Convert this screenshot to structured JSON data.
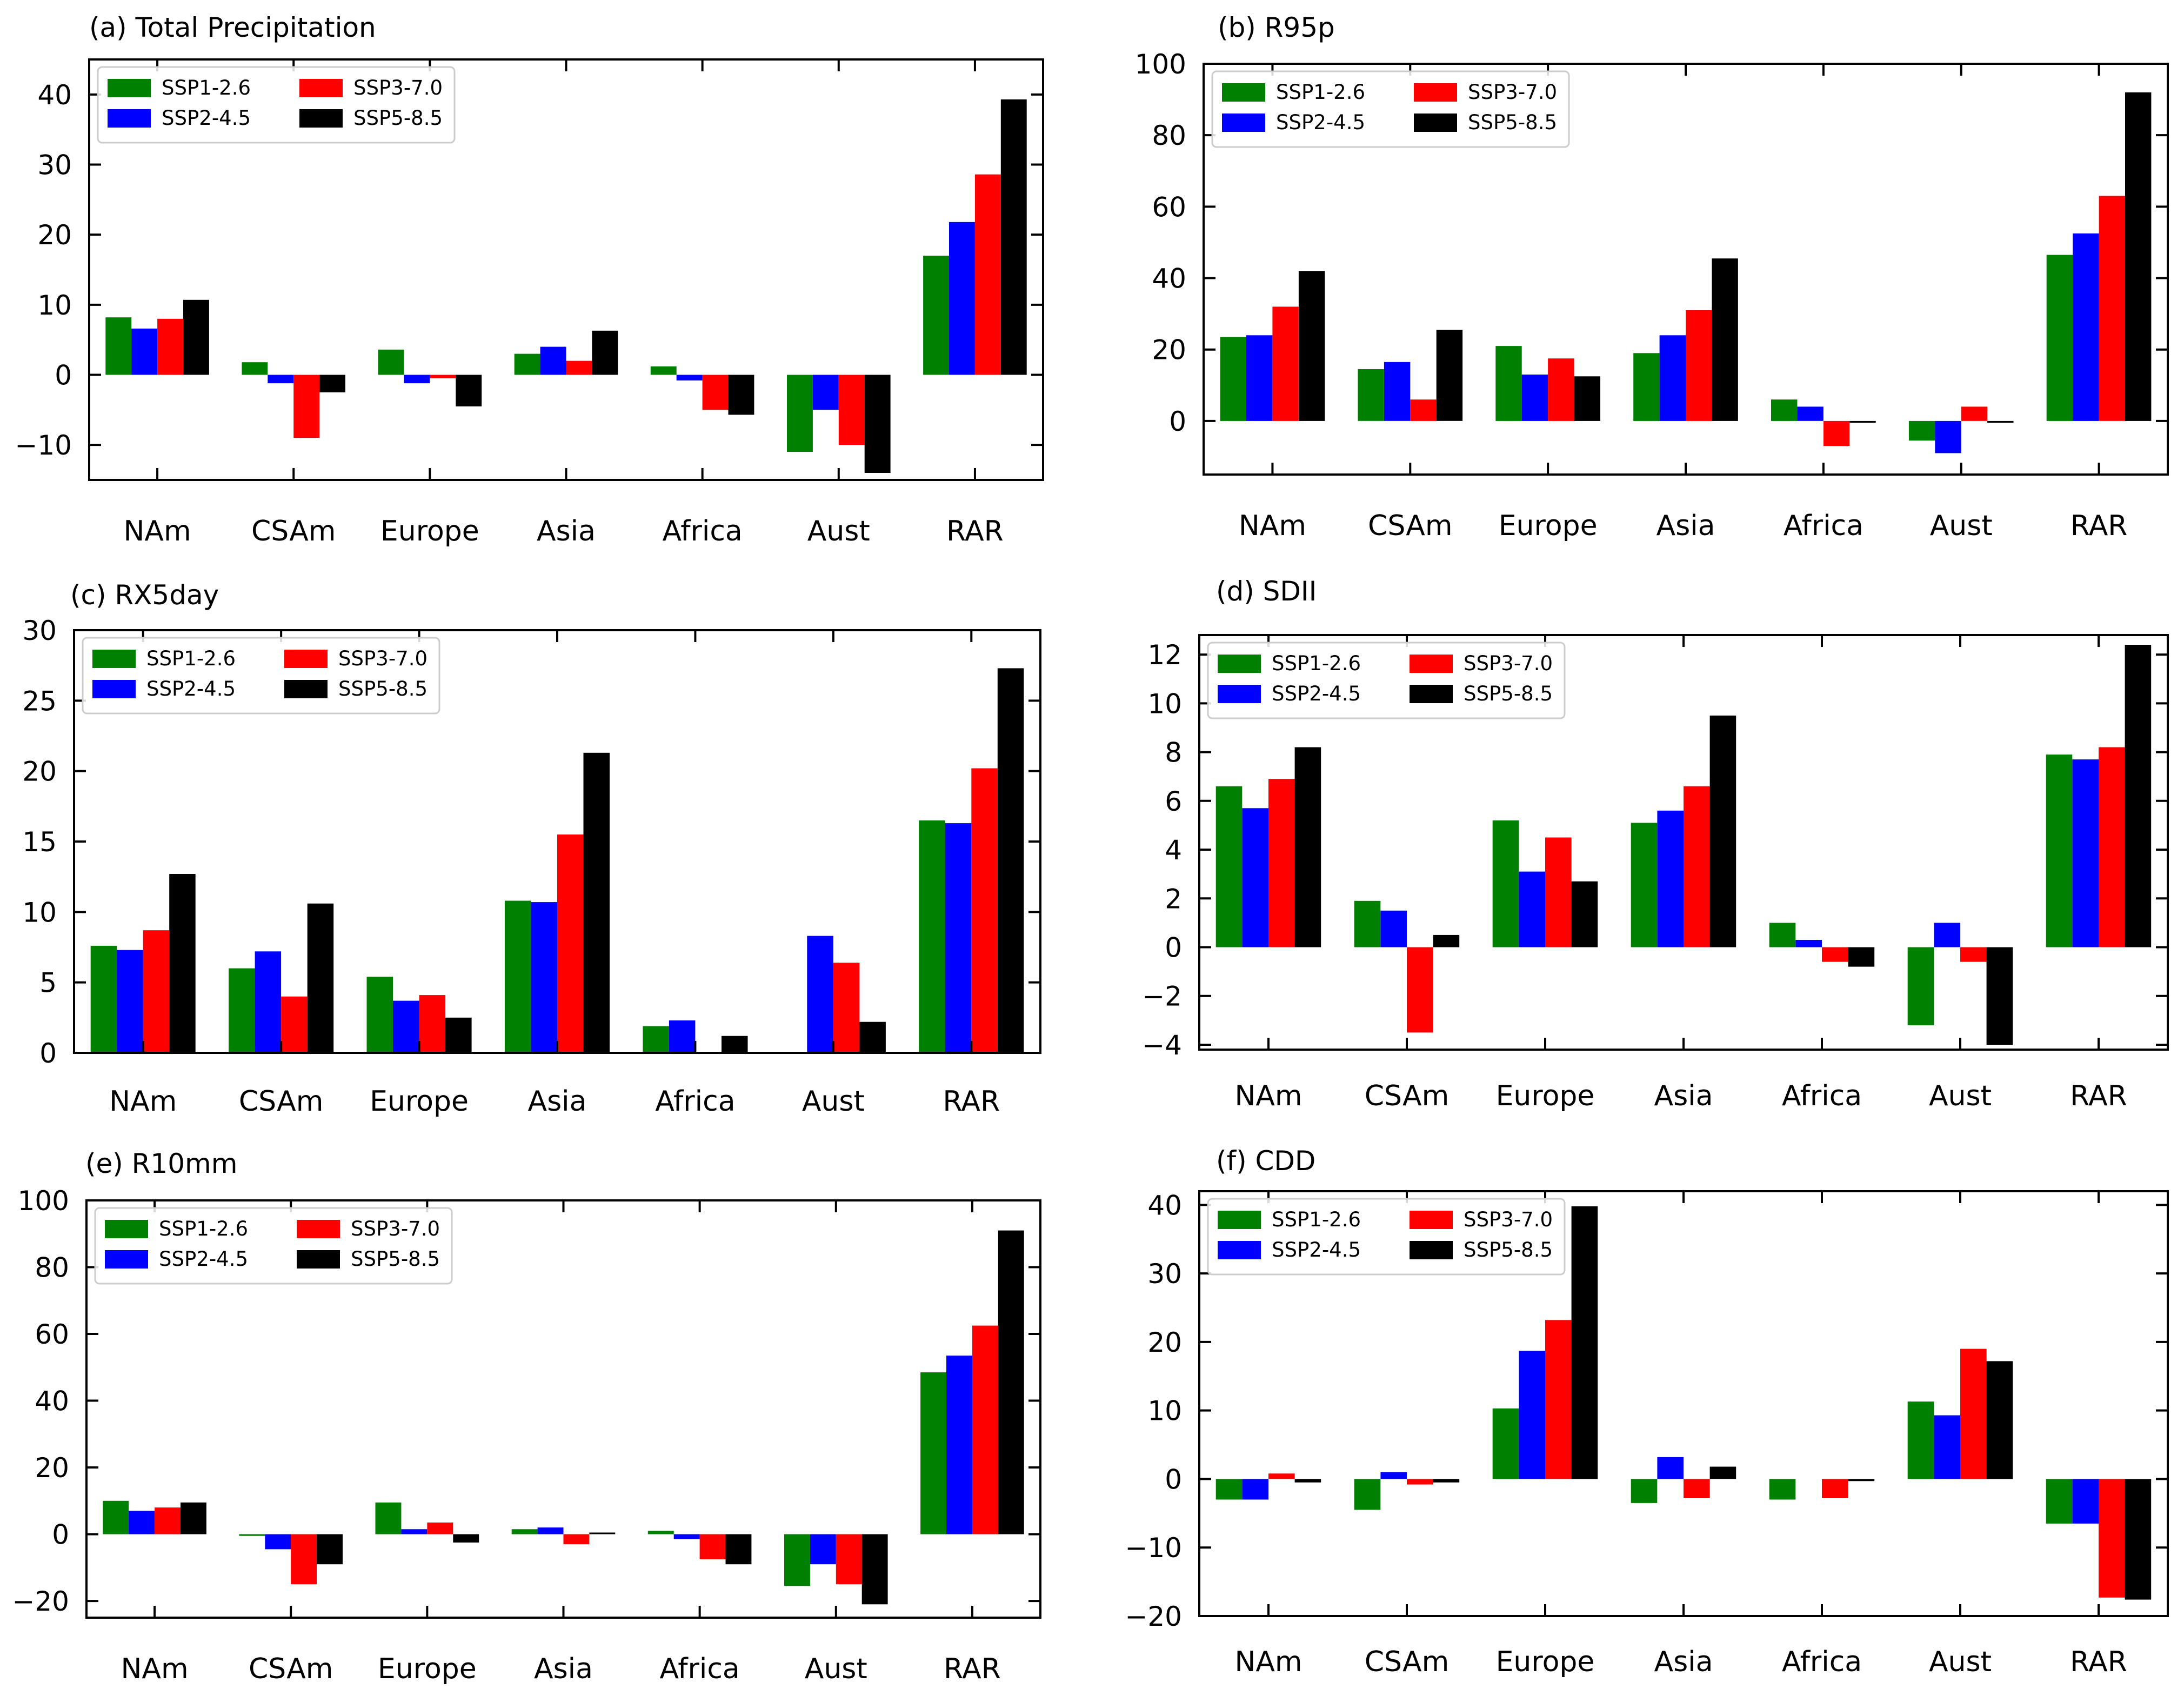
{
  "categories": [
    "NAm",
    "CSAm",
    "Europe",
    "Asia",
    "Africa",
    "Aust",
    "RAR"
  ],
  "series_names": [
    "SSP1-2.6",
    "SSP2-4.5",
    "SSP3-7.0",
    "SSP5-8.5"
  ],
  "series_colors": [
    "#008000",
    "#0000ff",
    "#ff0000",
    "#000000"
  ],
  "chart_data": [
    {
      "type": "bar",
      "title": "(a) Total Precipitation",
      "ylim": [
        -15,
        45
      ],
      "yticks": [
        -10,
        0,
        10,
        20,
        30,
        40
      ],
      "legend_position": "top-left",
      "grid": false,
      "series": [
        {
          "name": "SSP1-2.6",
          "values": [
            8.2,
            1.8,
            3.6,
            3.0,
            1.2,
            -11.0,
            17.0
          ]
        },
        {
          "name": "SSP2-4.5",
          "values": [
            6.6,
            -1.2,
            -1.2,
            4.0,
            -0.8,
            -5.0,
            21.8
          ]
        },
        {
          "name": "SSP3-7.0",
          "values": [
            8.0,
            -9.0,
            -0.5,
            2.0,
            -5.0,
            -10.0,
            28.6
          ]
        },
        {
          "name": "SSP5-8.5",
          "values": [
            10.7,
            -2.5,
            -4.5,
            6.3,
            -5.7,
            -14.0,
            39.3
          ]
        }
      ]
    },
    {
      "type": "bar",
      "title": "(b) R95p",
      "ylim": [
        -15,
        100
      ],
      "yticks": [
        0,
        20,
        40,
        60,
        80,
        100
      ],
      "legend_position": "top-left",
      "grid": false,
      "series": [
        {
          "name": "SSP1-2.6",
          "values": [
            23.5,
            14.5,
            21.0,
            19.0,
            6.0,
            -5.5,
            46.5
          ]
        },
        {
          "name": "SSP2-4.5",
          "values": [
            24.0,
            16.5,
            13.0,
            24.0,
            4.0,
            -9.0,
            52.5
          ]
        },
        {
          "name": "SSP3-7.0",
          "values": [
            32.0,
            6.0,
            17.5,
            31.0,
            -7.0,
            4.0,
            63.0
          ]
        },
        {
          "name": "SSP5-8.5",
          "values": [
            42.0,
            25.5,
            12.5,
            45.5,
            -0.5,
            -0.5,
            92.0
          ]
        }
      ]
    },
    {
      "type": "bar",
      "title": "(c) RX5day",
      "ylim": [
        0,
        30
      ],
      "yticks": [
        0,
        5,
        10,
        15,
        20,
        25,
        30
      ],
      "legend_position": "top-left",
      "grid": false,
      "series": [
        {
          "name": "SSP1-2.6",
          "values": [
            7.6,
            6.0,
            5.4,
            10.8,
            1.9,
            0.0,
            16.5
          ]
        },
        {
          "name": "SSP2-4.5",
          "values": [
            7.3,
            7.2,
            3.7,
            10.7,
            2.3,
            8.3,
            16.3
          ]
        },
        {
          "name": "SSP3-7.0",
          "values": [
            8.7,
            4.0,
            4.1,
            15.5,
            0.0,
            6.4,
            20.2
          ]
        },
        {
          "name": "SSP5-8.5",
          "values": [
            12.7,
            10.6,
            2.5,
            21.3,
            1.2,
            2.2,
            27.3
          ]
        }
      ]
    },
    {
      "type": "bar",
      "title": "(d) SDII",
      "ylim": [
        -4.2,
        12.8
      ],
      "yticks": [
        -4,
        -2,
        0,
        2,
        4,
        6,
        8,
        10,
        12
      ],
      "legend_position": "top-left",
      "grid": false,
      "series": [
        {
          "name": "SSP1-2.6",
          "values": [
            6.6,
            1.9,
            5.2,
            5.1,
            1.0,
            -3.2,
            7.9
          ]
        },
        {
          "name": "SSP2-4.5",
          "values": [
            5.7,
            1.5,
            3.1,
            5.6,
            0.3,
            1.0,
            7.7
          ]
        },
        {
          "name": "SSP3-7.0",
          "values": [
            6.9,
            -3.5,
            4.5,
            6.6,
            -0.6,
            -0.6,
            8.2
          ]
        },
        {
          "name": "SSP5-8.5",
          "values": [
            8.2,
            0.5,
            2.7,
            9.5,
            -0.8,
            -4.0,
            12.4
          ]
        }
      ]
    },
    {
      "type": "bar",
      "title": "(e) R10mm",
      "ylim": [
        -25,
        100
      ],
      "yticks": [
        -20,
        0,
        20,
        40,
        60,
        80,
        100
      ],
      "legend_position": "top-left",
      "grid": false,
      "series": [
        {
          "name": "SSP1-2.6",
          "values": [
            10.0,
            -0.5,
            9.5,
            1.5,
            1.0,
            -15.5,
            48.5
          ]
        },
        {
          "name": "SSP2-4.5",
          "values": [
            7.0,
            -4.5,
            1.5,
            2.0,
            -1.5,
            -9.0,
            53.5
          ]
        },
        {
          "name": "SSP3-7.0",
          "values": [
            8.0,
            -15.0,
            3.5,
            -3.0,
            -7.5,
            -15.0,
            62.5
          ]
        },
        {
          "name": "SSP5-8.5",
          "values": [
            9.5,
            -9.0,
            -2.5,
            0.5,
            -9.0,
            -21.0,
            91.0
          ]
        }
      ]
    },
    {
      "type": "bar",
      "title": "(f) CDD",
      "ylim": [
        -20,
        42
      ],
      "yticks": [
        -20,
        -10,
        0,
        10,
        20,
        30,
        40
      ],
      "legend_position": "top-left",
      "grid": false,
      "series": [
        {
          "name": "SSP1-2.6",
          "values": [
            -3.0,
            -4.5,
            10.3,
            -3.5,
            -3.0,
            11.3,
            -6.5
          ]
        },
        {
          "name": "SSP2-4.5",
          "values": [
            -3.0,
            1.0,
            18.7,
            3.2,
            0.0,
            9.3,
            -6.5
          ]
        },
        {
          "name": "SSP3-7.0",
          "values": [
            0.8,
            -0.8,
            23.2,
            -2.8,
            -2.8,
            19.0,
            -17.3
          ]
        },
        {
          "name": "SSP5-8.5",
          "values": [
            -0.5,
            -0.5,
            39.8,
            1.8,
            -0.3,
            17.2,
            -17.6
          ]
        }
      ]
    }
  ]
}
